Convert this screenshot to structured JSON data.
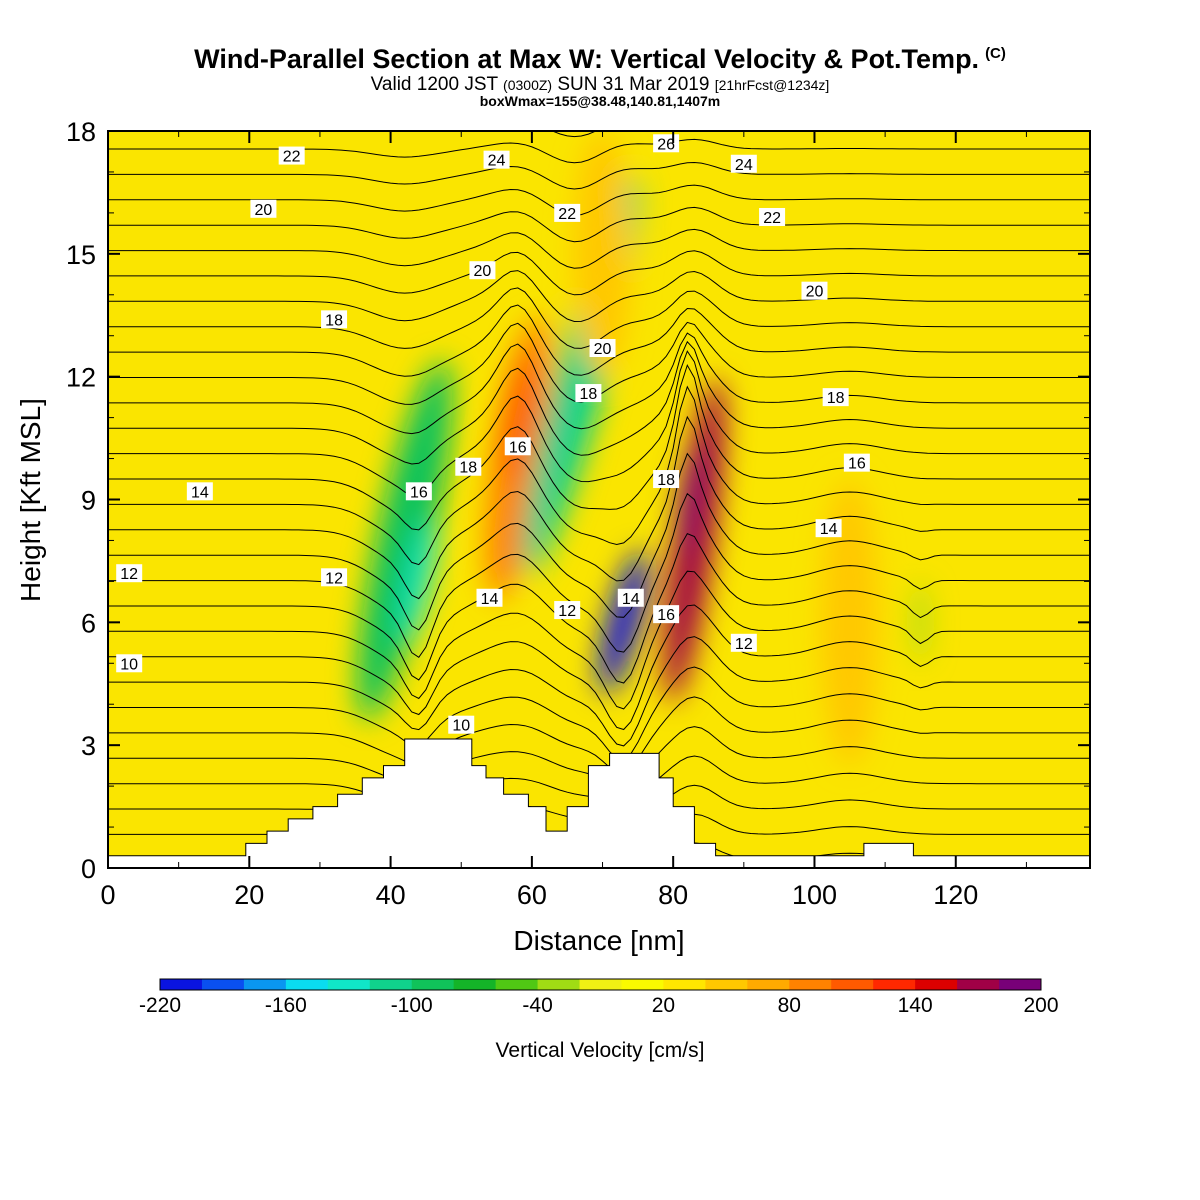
{
  "header": {
    "title": "Wind-Parallel Section at Max W: Vertical Velocity & Pot.Temp.",
    "title_mark": "(C)",
    "valid_prefix": "Valid 1200 JST",
    "valid_utc": "(0300Z)",
    "valid_date": "SUN 31 Mar 2019",
    "forecast": "[21hrFcst@1234z]",
    "boxwmax": "boxWmax=155@38.48,140.81,1407m"
  },
  "chart_data": {
    "type": "heatmap",
    "title": "Wind-Parallel Section at Max W: Vertical Velocity & Pot.Temp.",
    "xlabel": "Distance [nm]",
    "ylabel": "Height [Kft MSL]",
    "xlim": [
      0,
      139
    ],
    "ylim": [
      0,
      18
    ],
    "x_ticks": [
      0,
      20,
      40,
      60,
      80,
      100,
      120
    ],
    "y_ticks": [
      0,
      3,
      6,
      9,
      12,
      15,
      18
    ],
    "grid": false,
    "colorbar": {
      "label": "Vertical Velocity [cm/s]",
      "placement": "bottom",
      "tick_labels": [
        -220,
        -160,
        -100,
        -40,
        20,
        80,
        140,
        200
      ],
      "levels": [
        -220,
        -200,
        -180,
        -160,
        -140,
        -120,
        -100,
        -80,
        -60,
        -40,
        -20,
        0,
        20,
        40,
        60,
        80,
        100,
        120,
        140,
        160,
        180,
        200
      ],
      "colors": [
        "#0a14e0",
        "#0a50f0",
        "#0a96f0",
        "#0adcf0",
        "#10e6c8",
        "#10d28c",
        "#10c35a",
        "#14b428",
        "#50c814",
        "#a0dc14",
        "#f0f014",
        "#fafa00",
        "#ffe600",
        "#ffc800",
        "#ffaa00",
        "#ff8200",
        "#ff5a00",
        "#ff2800",
        "#dc0000",
        "#a00046",
        "#780078"
      ]
    },
    "vertical_velocity_cells": [
      {
        "x": 42,
        "y": 8,
        "value": -95,
        "sx": 4,
        "sy": 4.5,
        "angle": 12
      },
      {
        "x": 44,
        "y": 7,
        "value": -140,
        "sx": 1.6,
        "sy": 1.6,
        "angle": 12
      },
      {
        "x": 58,
        "y": 10,
        "value": 85,
        "sx": 3.5,
        "sy": 3.5,
        "angle": 8
      },
      {
        "x": 58,
        "y": 11,
        "value": 100,
        "sx": 2,
        "sy": 1.6,
        "angle": 8
      },
      {
        "x": 67,
        "y": 12,
        "value": -110,
        "sx": 3.5,
        "sy": 5,
        "angle": 15
      },
      {
        "x": 73,
        "y": 6,
        "value": -210,
        "sx": 2.2,
        "sy": 1.8,
        "angle": 15
      },
      {
        "x": 83,
        "y": 8,
        "value": 160,
        "sx": 2.8,
        "sy": 4,
        "angle": 8
      },
      {
        "x": 82,
        "y": 9,
        "value": 195,
        "sx": 1.2,
        "sy": 1.4,
        "angle": 8
      },
      {
        "x": 105,
        "y": 6,
        "value": 45,
        "sx": 4,
        "sy": 3.5,
        "angle": 0
      },
      {
        "x": 70,
        "y": 15,
        "value": 55,
        "sx": 4,
        "sy": 3,
        "angle": 0
      },
      {
        "x": 115,
        "y": 6,
        "value": -40,
        "sx": 1,
        "sy": 1,
        "angle": 0
      }
    ],
    "potential_temperature_labels": [
      {
        "x": 26,
        "y": 17.4,
        "label": "22"
      },
      {
        "x": 22,
        "y": 16.1,
        "label": "20"
      },
      {
        "x": 55,
        "y": 17.3,
        "label": "24"
      },
      {
        "x": 79,
        "y": 17.7,
        "label": "26"
      },
      {
        "x": 90,
        "y": 17.2,
        "label": "24"
      },
      {
        "x": 65,
        "y": 16.0,
        "label": "22"
      },
      {
        "x": 94,
        "y": 15.9,
        "label": "22"
      },
      {
        "x": 53,
        "y": 14.6,
        "label": "20"
      },
      {
        "x": 100,
        "y": 14.1,
        "label": "20"
      },
      {
        "x": 32,
        "y": 13.4,
        "label": "18"
      },
      {
        "x": 70,
        "y": 12.7,
        "label": "20"
      },
      {
        "x": 68,
        "y": 11.6,
        "label": "18"
      },
      {
        "x": 103,
        "y": 11.5,
        "label": "18"
      },
      {
        "x": 58,
        "y": 10.3,
        "label": "16"
      },
      {
        "x": 51,
        "y": 9.8,
        "label": "18"
      },
      {
        "x": 106,
        "y": 9.9,
        "label": "16"
      },
      {
        "x": 79,
        "y": 9.5,
        "label": "18"
      },
      {
        "x": 44,
        "y": 9.2,
        "label": "16"
      },
      {
        "x": 13,
        "y": 9.2,
        "label": "14"
      },
      {
        "x": 102,
        "y": 8.3,
        "label": "14"
      },
      {
        "x": 3,
        "y": 7.2,
        "label": "12"
      },
      {
        "x": 32,
        "y": 7.1,
        "label": "12"
      },
      {
        "x": 54,
        "y": 6.6,
        "label": "14"
      },
      {
        "x": 74,
        "y": 6.6,
        "label": "14"
      },
      {
        "x": 65,
        "y": 6.3,
        "label": "12"
      },
      {
        "x": 79,
        "y": 6.2,
        "label": "16"
      },
      {
        "x": 90,
        "y": 5.5,
        "label": "12"
      },
      {
        "x": 3,
        "y": 5.0,
        "label": "10"
      },
      {
        "x": 50,
        "y": 3.5,
        "label": "10"
      }
    ],
    "terrain_steps": [
      [
        0,
        0.3
      ],
      [
        19.5,
        0.6
      ],
      [
        22.5,
        0.9
      ],
      [
        25.5,
        1.2
      ],
      [
        29,
        1.5
      ],
      [
        32.5,
        1.8
      ],
      [
        36,
        2.2
      ],
      [
        39,
        2.5
      ],
      [
        42,
        3.15
      ],
      [
        47,
        3.15
      ],
      [
        51.5,
        2.5
      ],
      [
        53.5,
        2.2
      ],
      [
        56,
        1.8
      ],
      [
        59.5,
        1.5
      ],
      [
        62,
        0.9
      ],
      [
        65,
        1.5
      ],
      [
        68,
        2.5
      ],
      [
        71,
        2.8
      ],
      [
        75,
        2.8
      ],
      [
        78,
        2.2
      ],
      [
        80,
        1.5
      ],
      [
        83,
        0.6
      ],
      [
        86,
        0.3
      ],
      [
        107,
        0.6
      ],
      [
        114,
        0.3
      ],
      [
        139,
        0.3
      ]
    ]
  }
}
